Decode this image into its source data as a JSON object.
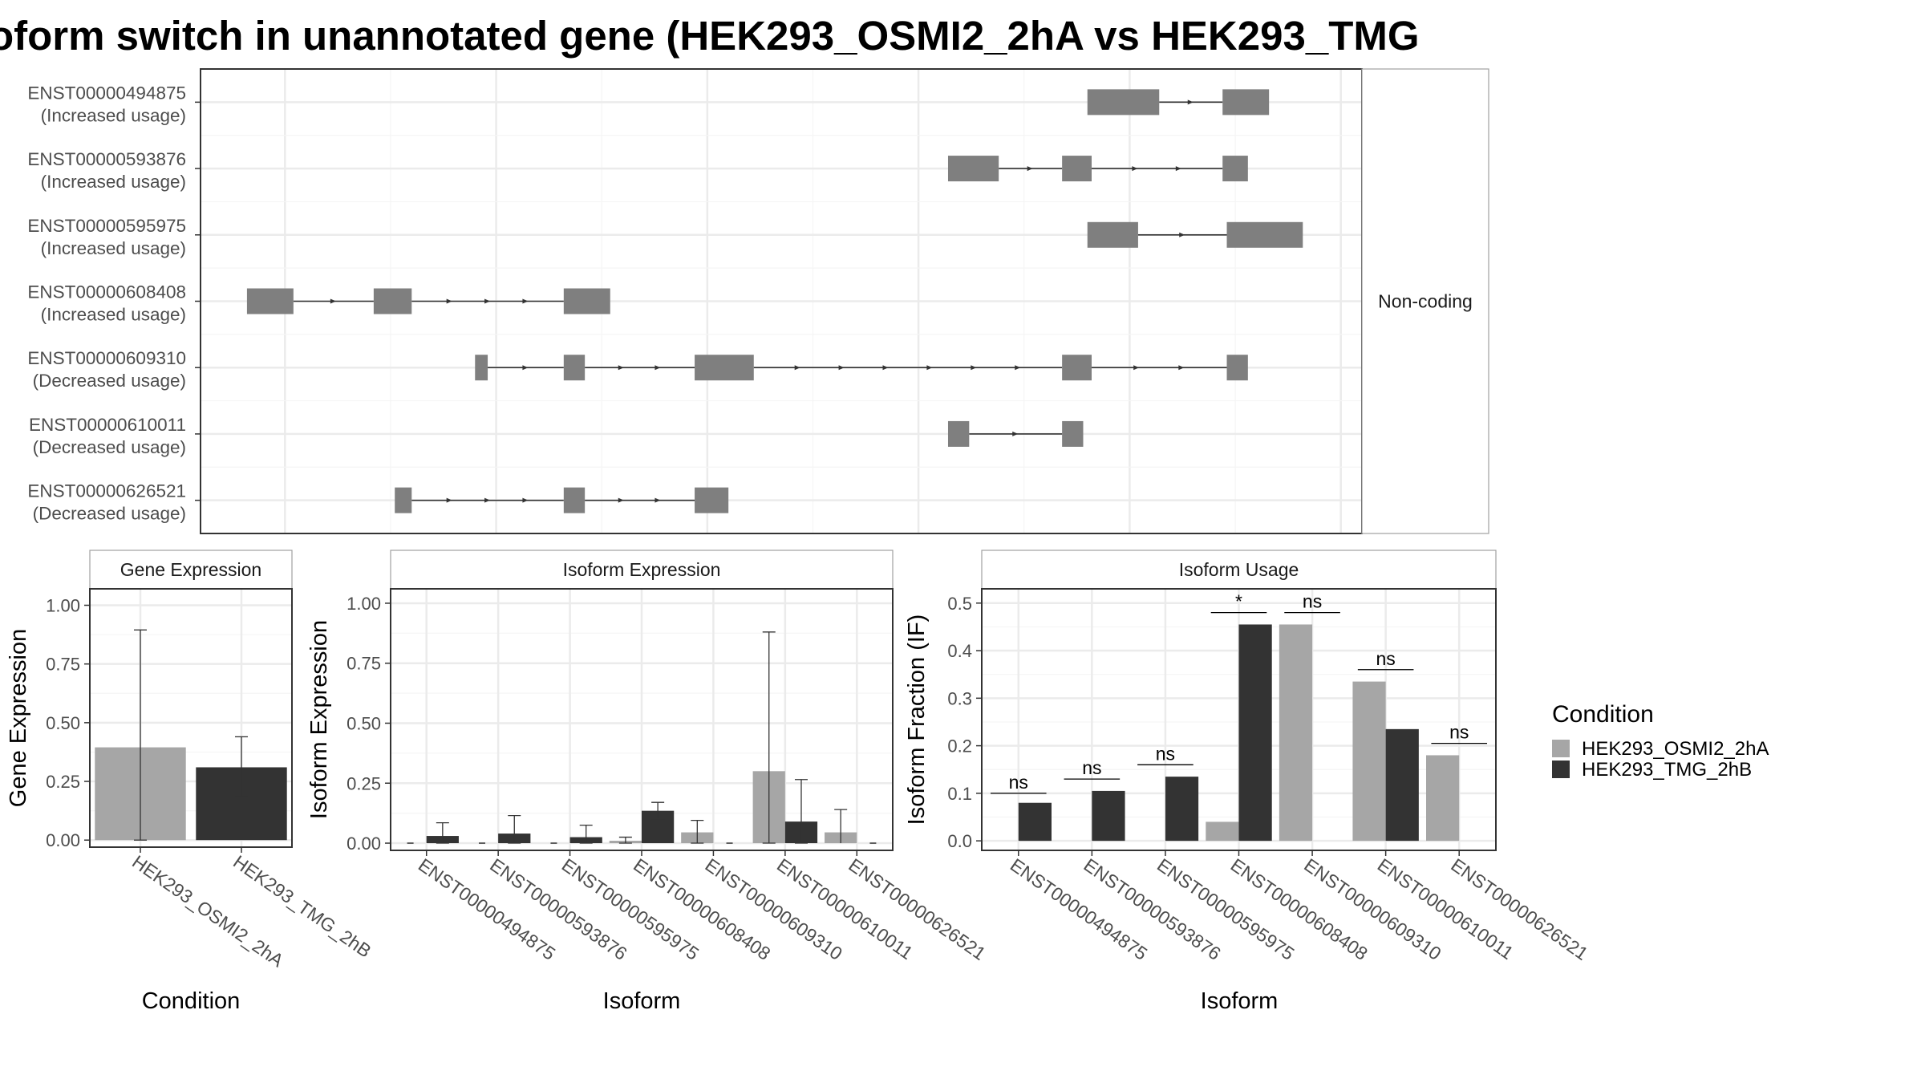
{
  "title": "oform switch in unannotated gene (HEK293_OSMI2_2hA vs HEK293_TMG",
  "colors": {
    "panel_border": "#333333",
    "grid": "#ebebeb",
    "exon": "#7f7f7f",
    "intron": "#333333",
    "cond_a": "#a6a6a6",
    "cond_b": "#333333",
    "strip_fill": "#ffffff",
    "text": "#1a1a1a",
    "tick_text": "#4d4d4d"
  },
  "chart_data": [
    {
      "type": "gene-structure",
      "strip_label": "Non-coding",
      "isoforms": [
        {
          "id": "ENST00000494875",
          "usage": "(Increased usage)",
          "exons": [
            [
              1.04,
              1.057
            ],
            [
              1.072,
              1.083
            ]
          ]
        },
        {
          "id": "ENST00000593876",
          "usage": "(Increased usage)",
          "exons": [
            [
              1.007,
              1.019
            ],
            [
              1.034,
              1.041
            ],
            [
              1.072,
              1.078
            ]
          ]
        },
        {
          "id": "ENST00000595975",
          "usage": "(Increased usage)",
          "exons": [
            [
              1.04,
              1.052
            ],
            [
              1.073,
              1.091
            ]
          ]
        },
        {
          "id": "ENST00000608408",
          "usage": "(Increased usage)",
          "exons": [
            [
              0.841,
              0.852
            ],
            [
              0.871,
              0.88
            ],
            [
              0.916,
              0.927
            ]
          ]
        },
        {
          "id": "ENST00000609310",
          "usage": "(Decreased usage)",
          "exons": [
            [
              0.895,
              0.898
            ],
            [
              0.916,
              0.921
            ],
            [
              0.947,
              0.961
            ],
            [
              1.034,
              1.041
            ],
            [
              1.073,
              1.078
            ]
          ]
        },
        {
          "id": "ENST00000610011",
          "usage": "(Decreased usage)",
          "exons": [
            [
              1.007,
              1.012
            ],
            [
              1.034,
              1.039
            ]
          ]
        },
        {
          "id": "ENST00000626521",
          "usage": "(Decreased usage)",
          "exons": [
            [
              0.876,
              0.88
            ],
            [
              0.916,
              0.921
            ],
            [
              0.947,
              0.955
            ]
          ]
        }
      ],
      "xlim": [
        0.83,
        1.105
      ]
    },
    {
      "type": "bar",
      "title": "Gene Expression",
      "xlabel": "Condition",
      "ylabel": "Gene Expression",
      "categories": [
        "HEK293_OSMI2_2hA",
        "HEK293_TMG_2hB"
      ],
      "values": [
        0.395,
        0.31
      ],
      "errors": [
        [
          0.0,
          0.895
        ],
        [
          0.185,
          0.44
        ]
      ],
      "ylim": [
        -0.03,
        1.07
      ],
      "yticks": [
        "0.00",
        "0.25",
        "0.50",
        "0.75",
        "1.00"
      ]
    },
    {
      "type": "bar",
      "title": "Isoform Expression",
      "xlabel": "Isoform",
      "ylabel": "Isoform Expression",
      "categories": [
        "ENST00000494875",
        "ENST00000593876",
        "ENST00000595975",
        "ENST00000608408",
        "ENST00000609310",
        "ENST00000610011",
        "ENST00000626521"
      ],
      "series": [
        {
          "name": "HEK293_OSMI2_2hA",
          "values": [
            0.0,
            0.0,
            0.0,
            0.01,
            0.045,
            0.3,
            0.045
          ],
          "errors": [
            [
              0,
              0
            ],
            [
              0,
              0
            ],
            [
              0,
              0
            ],
            [
              0,
              0.025
            ],
            [
              0,
              0.095
            ],
            [
              0,
              0.88
            ],
            [
              0,
              0
            ]
          ]
        },
        {
          "name": "HEK293_TMG_2hB",
          "values": [
            0.03,
            0.04,
            0.025,
            0.135,
            0.0,
            0.09,
            0.0
          ],
          "errors": [
            [
              0,
              0.085
            ],
            [
              0,
              0.115
            ],
            [
              0,
              0.075
            ],
            [
              0.1,
              0.17
            ],
            [
              0,
              0
            ],
            [
              0,
              0.265
            ],
            [
              0,
              0
            ]
          ]
        }
      ],
      "extra_errors": [
        {
          "category": 6,
          "series": 0,
          "range": [
            0,
            0.14
          ]
        }
      ],
      "ylim": [
        -0.03,
        1.06
      ],
      "yticks": [
        "0.00",
        "0.25",
        "0.50",
        "0.75",
        "1.00"
      ]
    },
    {
      "type": "bar",
      "title": "Isoform Usage",
      "xlabel": "Isoform",
      "ylabel": "Isoform Fraction (IF)",
      "categories": [
        "ENST00000494875",
        "ENST00000593876",
        "ENST00000595975",
        "ENST00000608408",
        "ENST00000609310",
        "ENST00000610011",
        "ENST00000626521"
      ],
      "series": [
        {
          "name": "HEK293_OSMI2_2hA",
          "values": [
            0.0,
            0.0,
            0.0,
            0.04,
            0.455,
            0.335,
            0.18
          ]
        },
        {
          "name": "HEK293_TMG_2hB",
          "values": [
            0.08,
            0.105,
            0.135,
            0.455,
            0.0,
            0.235,
            0.0
          ]
        }
      ],
      "significance": [
        "ns",
        "ns",
        "ns",
        "*",
        "ns",
        "ns",
        "ns"
      ],
      "sig_level": [
        0.1,
        0.13,
        0.16,
        0.48,
        0.48,
        0.36,
        0.205
      ],
      "ylim": [
        -0.02,
        0.53
      ],
      "yticks": [
        "0.0",
        "0.1",
        "0.2",
        "0.3",
        "0.4",
        "0.5"
      ]
    }
  ],
  "legend": {
    "title": "Condition",
    "entries": [
      "HEK293_OSMI2_2hA",
      "HEK293_TMG_2hB"
    ]
  }
}
